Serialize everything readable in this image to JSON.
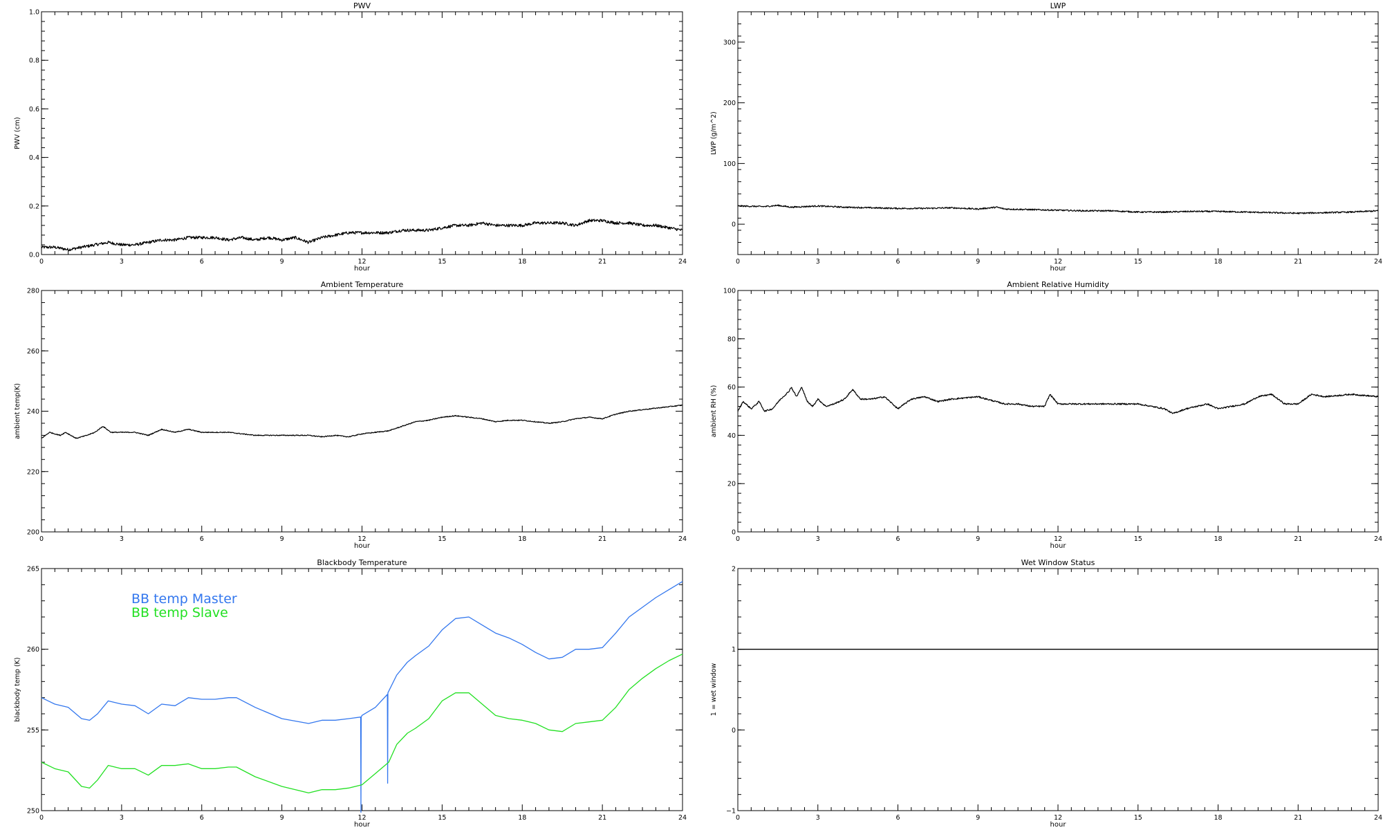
{
  "chart_data": [
    {
      "id": "pwv",
      "type": "line",
      "title": "PWV",
      "xlabel": "hour",
      "ylabel": "PWV (cm)",
      "xlim": [
        0,
        24
      ],
      "ylim": [
        0.0,
        1.0
      ],
      "xticks": [
        0,
        3,
        6,
        9,
        12,
        15,
        18,
        21,
        24
      ],
      "yticks": [
        0.0,
        0.2,
        0.4,
        0.6,
        0.8,
        1.0
      ],
      "ytick_labels": [
        "0.0",
        "0.2",
        "0.4",
        "0.6",
        "0.8",
        "1.0"
      ],
      "grid": false,
      "series": [
        {
          "color": "#000000",
          "noise": 0.006,
          "x": [
            0,
            0.5,
            1,
            1.5,
            2,
            2.5,
            3,
            3.5,
            4,
            4.5,
            5,
            5.5,
            6,
            6.5,
            7,
            7.5,
            8,
            8.5,
            9,
            9.5,
            10,
            10.5,
            11,
            11.5,
            12,
            12.5,
            13,
            13.5,
            14,
            14.5,
            15,
            15.5,
            16,
            16.5,
            17,
            17.5,
            18,
            18.5,
            19,
            19.5,
            20,
            20.5,
            21,
            21.5,
            22,
            22.5,
            23,
            23.5,
            24
          ],
          "values": [
            0.03,
            0.03,
            0.02,
            0.03,
            0.04,
            0.05,
            0.04,
            0.04,
            0.05,
            0.06,
            0.06,
            0.07,
            0.07,
            0.07,
            0.06,
            0.07,
            0.06,
            0.07,
            0.06,
            0.07,
            0.05,
            0.07,
            0.08,
            0.09,
            0.09,
            0.09,
            0.09,
            0.1,
            0.1,
            0.1,
            0.11,
            0.12,
            0.12,
            0.13,
            0.12,
            0.12,
            0.12,
            0.13,
            0.13,
            0.13,
            0.12,
            0.14,
            0.14,
            0.13,
            0.13,
            0.12,
            0.12,
            0.11,
            0.1
          ]
        }
      ]
    },
    {
      "id": "lwp",
      "type": "line",
      "title": "LWP",
      "xlabel": "hour",
      "ylabel": "LWP (g/m^2)",
      "xlim": [
        0,
        24
      ],
      "ylim": [
        -50,
        350
      ],
      "xticks": [
        0,
        3,
        6,
        9,
        12,
        15,
        18,
        21,
        24
      ],
      "yticks": [
        0,
        100,
        200,
        300
      ],
      "ytick_labels": [
        "0",
        "100",
        "200",
        "300"
      ],
      "grid": false,
      "series": [
        {
          "color": "#000000",
          "noise": 1.2,
          "x": [
            0,
            1,
            1.5,
            2,
            3,
            4,
            5,
            6,
            7,
            8,
            9,
            9.7,
            10,
            11,
            12,
            13,
            14,
            15,
            16,
            17,
            18,
            19,
            20,
            21,
            22,
            23,
            24
          ],
          "values": [
            30,
            29,
            31,
            28,
            30,
            28,
            27,
            26,
            26,
            27,
            25,
            28,
            25,
            24,
            23,
            22,
            22,
            20,
            20,
            21,
            21,
            20,
            19,
            18,
            19,
            20,
            22
          ]
        }
      ]
    },
    {
      "id": "ambient-temperature",
      "type": "line",
      "title": "Ambient Temperature",
      "xlabel": "hour",
      "ylabel": "ambient temp(K)",
      "xlim": [
        0,
        24
      ],
      "ylim": [
        200,
        280
      ],
      "xticks": [
        0,
        3,
        6,
        9,
        12,
        15,
        18,
        21,
        24
      ],
      "yticks": [
        200,
        220,
        240,
        260,
        280
      ],
      "ytick_labels": [
        "200",
        "220",
        "240",
        "260",
        "280"
      ],
      "grid": false,
      "series": [
        {
          "color": "#000000",
          "noise": 0.15,
          "x": [
            0,
            0.3,
            0.7,
            0.9,
            1.3,
            1.7,
            2,
            2.3,
            2.6,
            3,
            3.5,
            4,
            4.5,
            5,
            5.5,
            6,
            6.5,
            7,
            8,
            9,
            10,
            10.5,
            11,
            11.5,
            12,
            12.5,
            13,
            13.5,
            14,
            14.5,
            15,
            15.5,
            16,
            16.5,
            17,
            17.5,
            18,
            18.5,
            19,
            19.5,
            20,
            20.5,
            21,
            21.5,
            22,
            22.5,
            23,
            23.5,
            24
          ],
          "values": [
            231,
            233,
            232,
            233,
            231,
            232,
            233,
            235,
            233,
            233,
            233,
            232,
            234,
            233,
            234,
            233,
            233,
            233,
            232,
            232,
            232,
            231.5,
            232,
            231.5,
            232.5,
            233,
            233.5,
            235,
            236.5,
            237,
            238,
            238.5,
            238,
            237.5,
            236.5,
            237,
            237,
            236.5,
            236,
            236.5,
            237.5,
            238,
            237.5,
            239,
            240,
            240.5,
            241,
            241.5,
            242
          ]
        }
      ]
    },
    {
      "id": "ambient-relative-humidity",
      "type": "line",
      "title": "Ambient Relative Humidity",
      "xlabel": "hour",
      "ylabel": "ambient RH (%)",
      "xlim": [
        0,
        24
      ],
      "ylim": [
        0,
        100
      ],
      "xticks": [
        0,
        3,
        6,
        9,
        12,
        15,
        18,
        21,
        24
      ],
      "yticks": [
        0,
        20,
        40,
        60,
        80,
        100
      ],
      "ytick_labels": [
        "0",
        "20",
        "40",
        "60",
        "80",
        "100"
      ],
      "grid": false,
      "series": [
        {
          "color": "#000000",
          "noise": 0.3,
          "x": [
            0,
            0.2,
            0.5,
            0.8,
            1.0,
            1.3,
            1.6,
            1.9,
            2.0,
            2.2,
            2.4,
            2.6,
            2.8,
            3.0,
            3.3,
            3.6,
            4.0,
            4.3,
            4.6,
            5.0,
            5.5,
            6.0,
            6.5,
            7.0,
            7.5,
            8.0,
            9.0,
            10.0,
            10.5,
            11.0,
            11.5,
            11.7,
            12.0,
            12.5,
            13.0,
            14.0,
            15.0,
            15.5,
            16.0,
            16.3,
            16.8,
            17.2,
            17.6,
            18.0,
            18.5,
            19.0,
            19.5,
            20.0,
            20.5,
            21.0,
            21.5,
            22.0,
            23.0,
            24.0
          ],
          "values": [
            50,
            54,
            51,
            54,
            50,
            51,
            55,
            58,
            60,
            56,
            60,
            54,
            52,
            55,
            52,
            53,
            55,
            59,
            55,
            55,
            56,
            51,
            55,
            56,
            54,
            55,
            56,
            53,
            53,
            52,
            52,
            57,
            53,
            53,
            53,
            53,
            53,
            52,
            51,
            49,
            51,
            52,
            53,
            51,
            52,
            53,
            56,
            57,
            53,
            53,
            57,
            56,
            57,
            56
          ]
        }
      ]
    },
    {
      "id": "blackbody-temperature",
      "type": "line",
      "title": "Blackbody Temperature",
      "xlabel": "hour",
      "ylabel": "blackbody temp (K)",
      "xlim": [
        0,
        24
      ],
      "ylim": [
        250,
        265
      ],
      "xticks": [
        0,
        3,
        6,
        9,
        12,
        15,
        18,
        21,
        24
      ],
      "yticks": [
        250,
        255,
        260,
        265
      ],
      "ytick_labels": [
        "250",
        "255",
        "260",
        "265"
      ],
      "grid": false,
      "legend": {
        "position": "top-left"
      },
      "series": [
        {
          "name": "BB temp Master",
          "color": "#3377ee",
          "noise": 0,
          "x": [
            0,
            0.5,
            1,
            1.5,
            1.8,
            2.1,
            2.5,
            3,
            3.5,
            4,
            4.5,
            5,
            5.5,
            6,
            6.5,
            7,
            7.3,
            8,
            9,
            10,
            10.5,
            11,
            11.5,
            11.95,
            11.96,
            11.97,
            12,
            12.5,
            12.95,
            12.96,
            12.97,
            13.3,
            13.7,
            14,
            14.5,
            15,
            15.5,
            16,
            16.5,
            17,
            17.5,
            18,
            18.5,
            19,
            19.5,
            20,
            20.5,
            21,
            21.5,
            22,
            22.5,
            23,
            23.5,
            24
          ],
          "values": [
            257,
            256.6,
            256.4,
            255.7,
            255.6,
            256,
            256.8,
            256.6,
            256.5,
            256,
            256.6,
            256.5,
            257,
            256.9,
            256.9,
            257,
            257,
            256.4,
            255.7,
            255.4,
            255.6,
            255.6,
            255.7,
            255.8,
            249.9,
            255.8,
            255.9,
            256.4,
            257.2,
            251.7,
            257.3,
            258.4,
            259.2,
            259.6,
            260.2,
            261.2,
            261.9,
            262,
            261.5,
            261,
            260.7,
            260.3,
            259.8,
            259.4,
            259.5,
            260,
            260,
            260.1,
            261,
            262,
            262.6,
            263.2,
            263.7,
            264.2
          ]
        },
        {
          "name": "BB temp Slave",
          "color": "#22e022",
          "noise": 0,
          "x": [
            0,
            0.5,
            1,
            1.5,
            1.8,
            2.1,
            2.5,
            3,
            3.5,
            4,
            4.5,
            5,
            5.5,
            6,
            6.5,
            7,
            7.3,
            8,
            9,
            10,
            10.5,
            11,
            11.5,
            12,
            12.5,
            13,
            13.3,
            13.7,
            14,
            14.5,
            15,
            15.5,
            16,
            16.5,
            17,
            17.5,
            18,
            18.5,
            19,
            19.5,
            20,
            20.5,
            21,
            21.5,
            22,
            22.5,
            23,
            23.5,
            24
          ],
          "values": [
            253,
            252.6,
            252.4,
            251.5,
            251.4,
            251.9,
            252.8,
            252.6,
            252.6,
            252.2,
            252.8,
            252.8,
            252.9,
            252.6,
            252.6,
            252.7,
            252.7,
            252.1,
            251.5,
            251.1,
            251.3,
            251.3,
            251.4,
            251.6,
            252.3,
            253,
            254.1,
            254.8,
            255.1,
            255.7,
            256.8,
            257.3,
            257.3,
            256.6,
            255.9,
            255.7,
            255.6,
            255.4,
            255,
            254.9,
            255.4,
            255.5,
            255.6,
            256.4,
            257.5,
            258.2,
            258.8,
            259.3,
            259.7
          ]
        }
      ]
    },
    {
      "id": "wet-window-status",
      "type": "line",
      "title": "Wet Window Status",
      "xlabel": "hour",
      "ylabel": "1 = wet window",
      "xlim": [
        0,
        24
      ],
      "ylim": [
        -1,
        2
      ],
      "xticks": [
        0,
        3,
        6,
        9,
        12,
        15,
        18,
        21,
        24
      ],
      "yticks": [
        -1,
        0,
        1,
        2
      ],
      "ytick_labels": [
        "−1",
        "0",
        "1",
        "2"
      ],
      "grid": false,
      "series": [
        {
          "color": "#000000",
          "noise": 0,
          "x": [
            0,
            24
          ],
          "values": [
            1,
            1
          ]
        }
      ]
    }
  ]
}
